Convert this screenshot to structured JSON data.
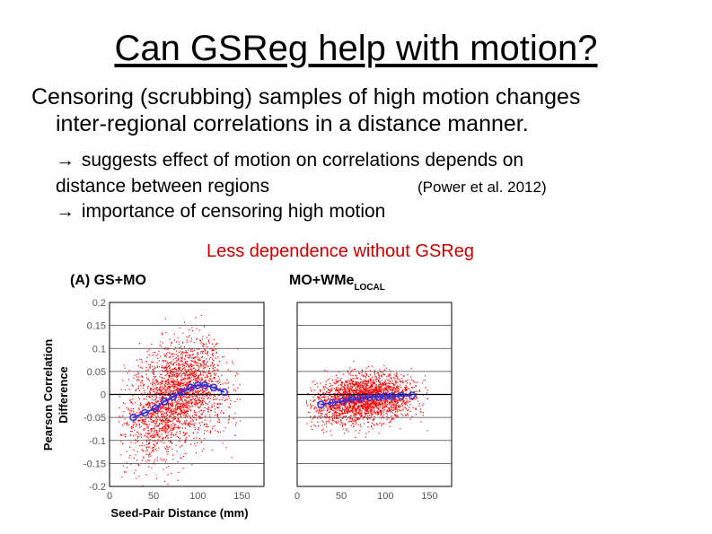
{
  "slide": {
    "title": "Can GSReg help with motion?",
    "body_line1": "Censoring (scrubbing) samples of high motion changes",
    "body_line2": "inter-regional correlations in a distance manner.",
    "sub_line1": "suggests effect of motion on correlations depends on",
    "sub_line2": "distance between regions",
    "citation": "(Power et al. 2012)",
    "sub_line3": "importance of censoring high motion",
    "note": "Less dependence without GSReg"
  },
  "colors": {
    "scatter": "#ff0000",
    "curve": "#3333dd",
    "note": "#cc0000"
  },
  "icons": {
    "arrow": "right-arrow-icon"
  },
  "chart_data": [
    {
      "type": "scatter",
      "title": "(A) GS+MO",
      "xlabel": "Seed-Pair Distance (mm)",
      "ylabel_line1": "Pearson Correlation",
      "ylabel_line2": "Difference",
      "xlim": [
        0,
        175
      ],
      "ylim": [
        -0.2,
        0.2
      ],
      "x_ticks": [
        "0",
        "50",
        "100",
        "150"
      ],
      "y_ticks": [
        "0.2",
        "0.15",
        "0.1",
        "0.05",
        "0",
        "-0.05",
        "-0.1",
        "-0.15",
        "-0.2"
      ],
      "grid": true,
      "series": [
        {
          "x": [
            27,
            40,
            52,
            62,
            72,
            82,
            92,
            100,
            108,
            118,
            130
          ],
          "y": [
            -0.05,
            -0.04,
            -0.03,
            -0.015,
            -0.005,
            0.005,
            0.015,
            0.02,
            0.02,
            0.015,
            0.005
          ]
        }
      ]
    },
    {
      "type": "scatter",
      "title": "MO+WMe",
      "title_sub": "LOCAL",
      "xlim": [
        0,
        175
      ],
      "ylim": [
        -0.2,
        0.2
      ],
      "x_ticks": [
        "0",
        "50",
        "100",
        "150"
      ],
      "grid": true,
      "series": [
        {
          "x": [
            27,
            40,
            52,
            62,
            72,
            82,
            92,
            100,
            108,
            118,
            130
          ],
          "y": [
            -0.022,
            -0.018,
            -0.014,
            -0.01,
            -0.008,
            -0.006,
            -0.005,
            -0.004,
            -0.004,
            -0.003,
            -0.002
          ]
        }
      ]
    }
  ]
}
